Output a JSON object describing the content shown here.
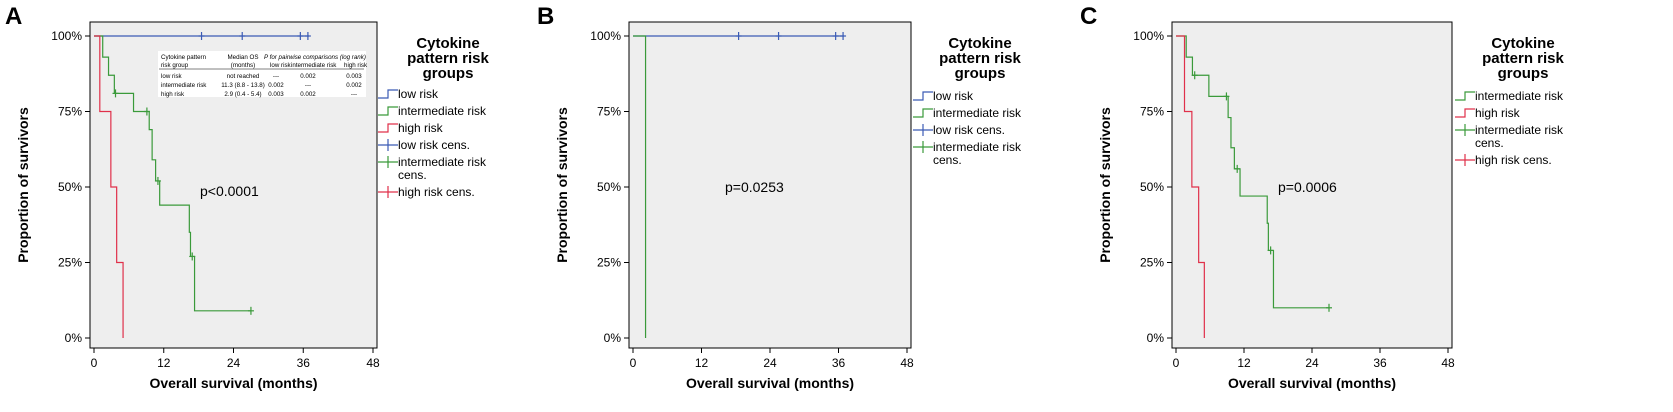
{
  "panels": [
    {
      "letter": "A",
      "pvalue": "p<0.0001",
      "legend_title": [
        "Cytokine",
        "pattern risk",
        "groups"
      ],
      "legend_items": [
        {
          "label": [
            "low risk"
          ],
          "color": "#3b5bb5",
          "kind": "line"
        },
        {
          "label": [
            "intermediate risk"
          ],
          "color": "#3a9a3a",
          "kind": "line"
        },
        {
          "label": [
            "high risk"
          ],
          "color": "#e0304a",
          "kind": "line"
        },
        {
          "label": [
            "low risk cens."
          ],
          "color": "#3b5bb5",
          "kind": "cens"
        },
        {
          "label": [
            "intermediate risk",
            "cens."
          ],
          "color": "#3a9a3a",
          "kind": "cens"
        },
        {
          "label": [
            "high risk cens."
          ],
          "color": "#e0304a",
          "kind": "cens"
        }
      ],
      "inset_table": {
        "headers": [
          [
            "Cytokine pattern",
            "risk group"
          ],
          [
            "Median OS",
            "(months)"
          ],
          [
            "P for pairwise comparisons (log rank)"
          ],
          [
            "low risk"
          ],
          [
            "intermediate risk"
          ],
          [
            "high risk"
          ]
        ],
        "rows": [
          [
            "low risk",
            "not reached",
            "---",
            "0.002",
            "0.003"
          ],
          [
            "intermediate risk",
            "11.3 (8.8 - 13.8)",
            "0.002",
            "---",
            "0.002"
          ],
          [
            "high risk",
            "2.9 (0.4 - 5.4)",
            "0.003",
            "0.002",
            "---"
          ]
        ]
      }
    },
    {
      "letter": "B",
      "pvalue": "p=0.0253",
      "legend_title": [
        "Cytokine",
        "pattern risk",
        "groups"
      ],
      "legend_items": [
        {
          "label": [
            "low risk"
          ],
          "color": "#3b5bb5",
          "kind": "line"
        },
        {
          "label": [
            "intermediate risk"
          ],
          "color": "#3a9a3a",
          "kind": "line"
        },
        {
          "label": [
            "low risk cens."
          ],
          "color": "#3b5bb5",
          "kind": "cens"
        },
        {
          "label": [
            "intermediate risk",
            "cens."
          ],
          "color": "#3a9a3a",
          "kind": "cens"
        }
      ]
    },
    {
      "letter": "C",
      "pvalue": "p=0.0006",
      "legend_title": [
        "Cytokine",
        "pattern risk",
        "groups"
      ],
      "legend_items": [
        {
          "label": [
            "intermediate risk"
          ],
          "color": "#3a9a3a",
          "kind": "line"
        },
        {
          "label": [
            "high risk"
          ],
          "color": "#e0304a",
          "kind": "line"
        },
        {
          "label": [
            "intermediate risk",
            "cens."
          ],
          "color": "#3a9a3a",
          "kind": "cens"
        },
        {
          "label": [
            "high risk cens."
          ],
          "color": "#e0304a",
          "kind": "cens"
        }
      ]
    }
  ],
  "chart_data": [
    {
      "type": "line",
      "xlabel": "Overall survival (months)",
      "ylabel": "Proportion of survivors",
      "xlim": [
        0,
        48
      ],
      "ylim": [
        0,
        1
      ],
      "xticks": [
        0,
        12,
        24,
        36,
        48
      ],
      "yticks": [
        0,
        0.25,
        0.5,
        0.75,
        1
      ],
      "ytick_labels": [
        "0%",
        "25%",
        "50%",
        "75%",
        "100%"
      ],
      "series": [
        {
          "name": "low risk",
          "color": "#3b5bb5",
          "steps": [
            [
              0,
              1.0
            ]
          ],
          "end": 37,
          "censored": [
            [
              18.5,
              1.0
            ],
            [
              25.5,
              1.0
            ],
            [
              35.5,
              1.0
            ],
            [
              36.8,
              1.0
            ]
          ]
        },
        {
          "name": "intermediate risk",
          "color": "#3a9a3a",
          "steps": [
            [
              0,
              1.0
            ],
            [
              1.5,
              0.93
            ],
            [
              2.5,
              0.87
            ],
            [
              3.5,
              0.81
            ],
            [
              6.8,
              0.75
            ],
            [
              9.5,
              0.69
            ],
            [
              10.0,
              0.59
            ],
            [
              10.6,
              0.52
            ],
            [
              11.3,
              0.44
            ],
            [
              16.4,
              0.35
            ],
            [
              16.6,
              0.27
            ],
            [
              17.3,
              0.09
            ]
          ],
          "end": 27,
          "censored": [
            [
              3.7,
              0.81
            ],
            [
              9.1,
              0.75
            ],
            [
              11.0,
              0.52
            ],
            [
              16.9,
              0.27
            ],
            [
              27.0,
              0.09
            ]
          ]
        },
        {
          "name": "high risk",
          "color": "#e0304a",
          "steps": [
            [
              0,
              1.0
            ],
            [
              1.0,
              0.75
            ],
            [
              2.9,
              0.5
            ],
            [
              3.9,
              0.25
            ],
            [
              5.0,
              0.0
            ]
          ],
          "end": 5.0,
          "censored": []
        }
      ]
    },
    {
      "type": "line",
      "xlabel": "Overall survival (months)",
      "ylabel": "Proportion of survivors",
      "xlim": [
        0,
        48
      ],
      "ylim": [
        0,
        1
      ],
      "xticks": [
        0,
        12,
        24,
        36,
        48
      ],
      "yticks": [
        0,
        0.25,
        0.5,
        0.75,
        1
      ],
      "ytick_labels": [
        "0%",
        "25%",
        "50%",
        "75%",
        "100%"
      ],
      "series": [
        {
          "name": "low risk",
          "color": "#3b5bb5",
          "steps": [
            [
              0,
              1.0
            ]
          ],
          "end": 37,
          "censored": [
            [
              18.5,
              1.0
            ],
            [
              25.5,
              1.0
            ],
            [
              35.5,
              1.0
            ],
            [
              36.8,
              1.0
            ]
          ]
        },
        {
          "name": "intermediate risk",
          "color": "#3a9a3a",
          "steps": [
            [
              0,
              1.0
            ],
            [
              2.2,
              0.0
            ]
          ],
          "end": 2.2,
          "censored": []
        }
      ]
    },
    {
      "type": "line",
      "xlabel": "Overall survival (months)",
      "ylabel": "Proportion of survivors",
      "xlim": [
        0,
        48
      ],
      "ylim": [
        0,
        1
      ],
      "xticks": [
        0,
        12,
        24,
        36,
        48
      ],
      "yticks": [
        0,
        0.25,
        0.5,
        0.75,
        1
      ],
      "ytick_labels": [
        "0%",
        "25%",
        "50%",
        "75%",
        "100%"
      ],
      "series": [
        {
          "name": "intermediate risk",
          "color": "#3a9a3a",
          "steps": [
            [
              0,
              1.0
            ],
            [
              1.8,
              0.93
            ],
            [
              2.9,
              0.87
            ],
            [
              5.8,
              0.8
            ],
            [
              9.2,
              0.73
            ],
            [
              9.7,
              0.63
            ],
            [
              10.3,
              0.56
            ],
            [
              11.3,
              0.47
            ],
            [
              16.1,
              0.38
            ],
            [
              16.3,
              0.29
            ],
            [
              17.2,
              0.1
            ]
          ],
          "end": 27,
          "censored": [
            [
              3.3,
              0.87
            ],
            [
              8.9,
              0.8
            ],
            [
              10.8,
              0.56
            ],
            [
              16.7,
              0.29
            ],
            [
              27.0,
              0.1
            ]
          ]
        },
        {
          "name": "high risk",
          "color": "#e0304a",
          "steps": [
            [
              0,
              1.0
            ],
            [
              1.5,
              0.75
            ],
            [
              2.8,
              0.5
            ],
            [
              4.0,
              0.25
            ],
            [
              5.0,
              0.0
            ]
          ],
          "end": 5.0,
          "censored": []
        }
      ]
    }
  ]
}
